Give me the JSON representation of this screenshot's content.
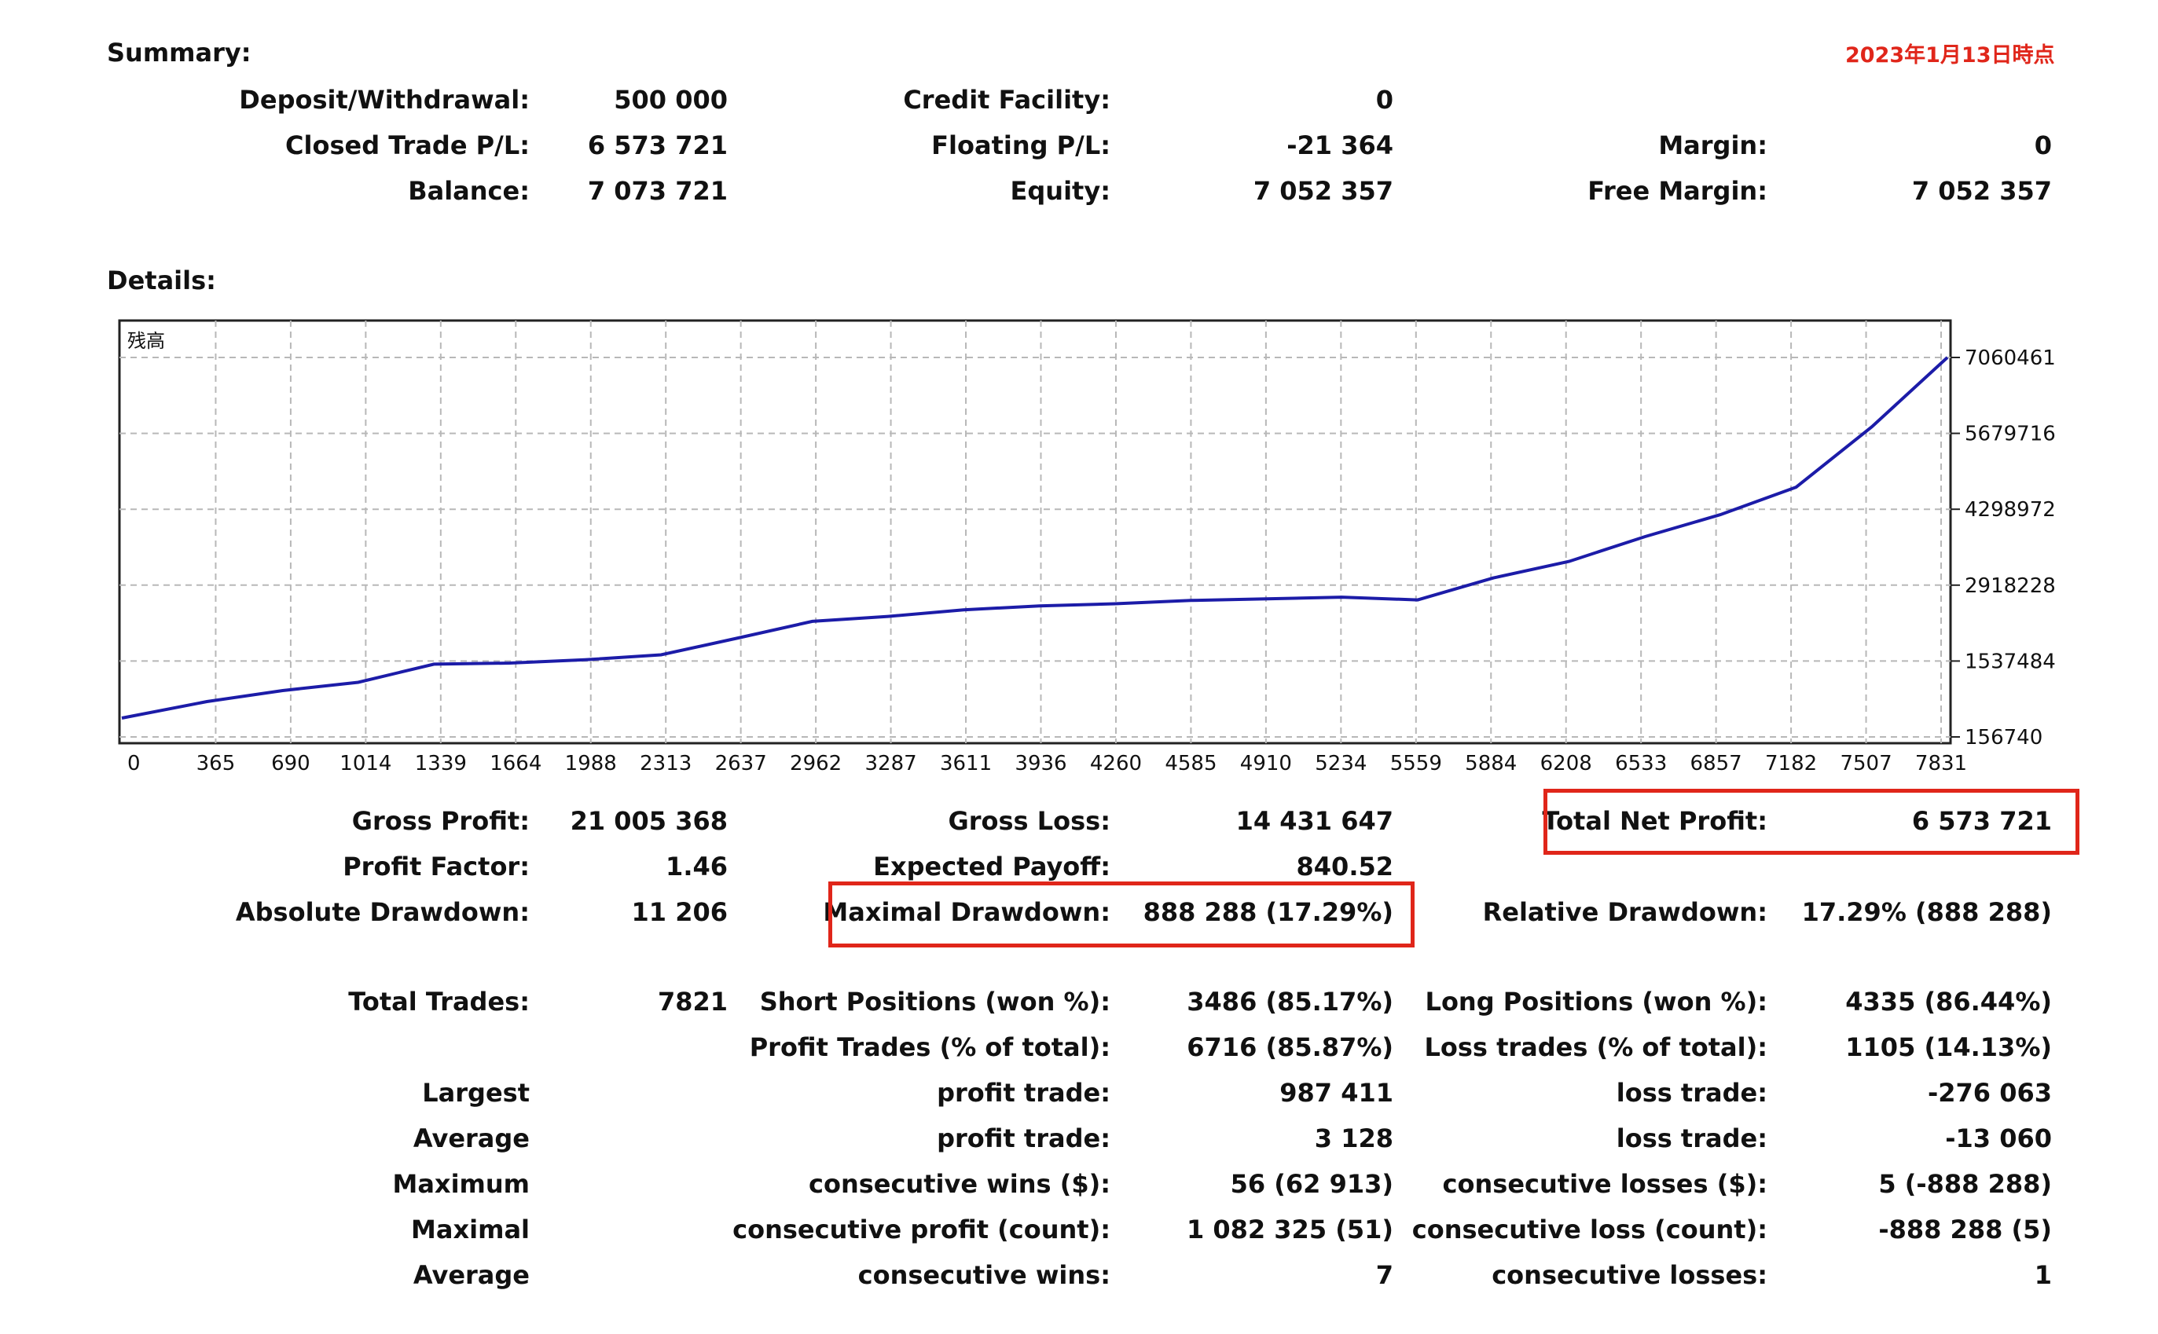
{
  "date_note": "2023年1月13日時点",
  "summary": {
    "heading": "Summary:",
    "deposit_label": "Deposit/Withdrawal:",
    "deposit_value": "500 000",
    "credit_label": "Credit Facility:",
    "credit_value": "0",
    "closed_label": "Closed Trade P/L:",
    "closed_value": "6 573 721",
    "floating_label": "Floating P/L:",
    "floating_value": "-21 364",
    "margin_label": "Margin:",
    "margin_value": "0",
    "balance_label": "Balance:",
    "balance_value": "7 073 721",
    "equity_label": "Equity:",
    "equity_value": "7 052 357",
    "free_margin_label": "Free Margin:",
    "free_margin_value": "7 052 357"
  },
  "details": {
    "heading": "Details:",
    "gross_profit_label": "Gross Profit:",
    "gross_profit_value": "21 005 368",
    "gross_loss_label": "Gross Loss:",
    "gross_loss_value": "14 431 647",
    "total_net_label": "Total Net Profit:",
    "total_net_value": "6 573 721",
    "profit_factor_label": "Profit Factor:",
    "profit_factor_value": "1.46",
    "expected_payoff_label": "Expected Payoff:",
    "expected_payoff_value": "840.52",
    "abs_dd_label": "Absolute Drawdown:",
    "abs_dd_value": "11 206",
    "max_dd_label": "Maximal Drawdown:",
    "max_dd_value": "888 288 (17.29%)",
    "rel_dd_label": "Relative Drawdown:",
    "rel_dd_value": "17.29% (888 288)",
    "total_trades_label": "Total Trades:",
    "total_trades_value": "7821",
    "short_label": "Short Positions (won %):",
    "short_value": "3486 (85.17%)",
    "long_label": "Long Positions (won %):",
    "long_value": "4335 (86.44%)",
    "profit_trades_label": "Profit Trades (% of total):",
    "profit_trades_value": "6716 (85.87%)",
    "loss_trades_label": "Loss trades (% of total):",
    "loss_trades_value": "1105 (14.13%)",
    "largest_label": "Largest",
    "largest_profit_label": "profit trade:",
    "largest_profit_value": "987 411",
    "largest_loss_label": "loss trade:",
    "largest_loss_value": "-276 063",
    "average_label": "Average",
    "average_profit_label": "profit trade:",
    "average_profit_value": "3 128",
    "average_loss_label": "loss trade:",
    "average_loss_value": "-13 060",
    "maximum_label": "Maximum",
    "max_wins_label": "consecutive wins ($):",
    "max_wins_value": "56 (62 913)",
    "max_losses_label": "consecutive losses ($):",
    "max_losses_value": "5 (-888 288)",
    "maximal_label": "Maximal",
    "maximal_profit_label": "consecutive profit (count):",
    "maximal_profit_value": "1 082 325 (51)",
    "maximal_loss_label": "consecutive loss (count):",
    "maximal_loss_value": "-888 288 (5)",
    "average2_label": "Average",
    "avg_wins_label": "consecutive wins:",
    "avg_wins_value": "7",
    "avg_losses_label": "consecutive losses:",
    "avg_losses_value": "1"
  },
  "colors": {
    "line": "#1c1ca8",
    "highlight": "#e0261a",
    "grid": "#b8b8b8"
  },
  "chart_data": {
    "type": "line",
    "legend_label": "残高",
    "x_ticks": [
      "0",
      "365",
      "690",
      "1014",
      "1339",
      "1664",
      "1988",
      "2313",
      "2637",
      "2962",
      "3287",
      "3611",
      "3936",
      "4260",
      "4585",
      "4910",
      "5234",
      "5559",
      "5884",
      "6208",
      "6533",
      "6857",
      "7182",
      "7507",
      "7831"
    ],
    "y_ticks": [
      "7060461",
      "5679716",
      "4298972",
      "2918228",
      "1537484",
      "156740"
    ],
    "y_tick_values": [
      7060461,
      5679716,
      4298972,
      2918228,
      1537484,
      156740
    ],
    "xlim": [
      0,
      7831
    ],
    "ylim": [
      156740,
      7060461
    ],
    "grid": true,
    "series": [
      {
        "x": [
          0,
          365,
          690,
          1014,
          1339,
          1664,
          1988,
          2313,
          2637,
          2962,
          3287,
          3611,
          3936,
          4260,
          4585,
          4910,
          5234,
          5559,
          5884,
          6208,
          6533,
          6857,
          7182,
          7507,
          7831
        ],
        "y": [
          500000,
          800000,
          1000000,
          1150000,
          1480000,
          1500000,
          1560000,
          1650000,
          1950000,
          2260000,
          2350000,
          2470000,
          2540000,
          2580000,
          2640000,
          2670000,
          2700000,
          2650000,
          3050000,
          3350000,
          3800000,
          4200000,
          4700000,
          5800000,
          7060461
        ]
      }
    ]
  }
}
